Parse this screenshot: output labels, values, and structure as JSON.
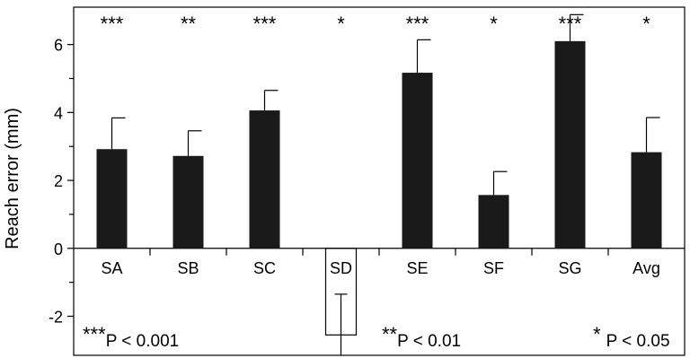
{
  "chart_data": {
    "type": "bar",
    "ylabel": "Reach error (mm)",
    "ylim": [
      -3.15,
      7.1
    ],
    "yticks": [
      -2,
      0,
      2,
      4,
      6
    ],
    "categories": [
      "SA",
      "SB",
      "SC",
      "SD",
      "SE",
      "SF",
      "SG",
      "Avg"
    ],
    "values": [
      2.92,
      2.72,
      4.06,
      -2.55,
      5.17,
      1.57,
      6.1,
      2.83
    ],
    "errors": [
      0.92,
      0.74,
      0.59,
      1.2,
      0.97,
      0.69,
      0.78,
      1.02
    ],
    "significance": [
      "***",
      "**",
      "***",
      "*",
      "***",
      "*",
      "***",
      "*"
    ],
    "bar_color": "#1a1a1a",
    "legend": [
      {
        "stars": "***",
        "text": "P < 0.001"
      },
      {
        "stars": "**",
        "text": "P < 0.01"
      },
      {
        "stars": "*",
        "text": "P < 0.05"
      }
    ]
  }
}
